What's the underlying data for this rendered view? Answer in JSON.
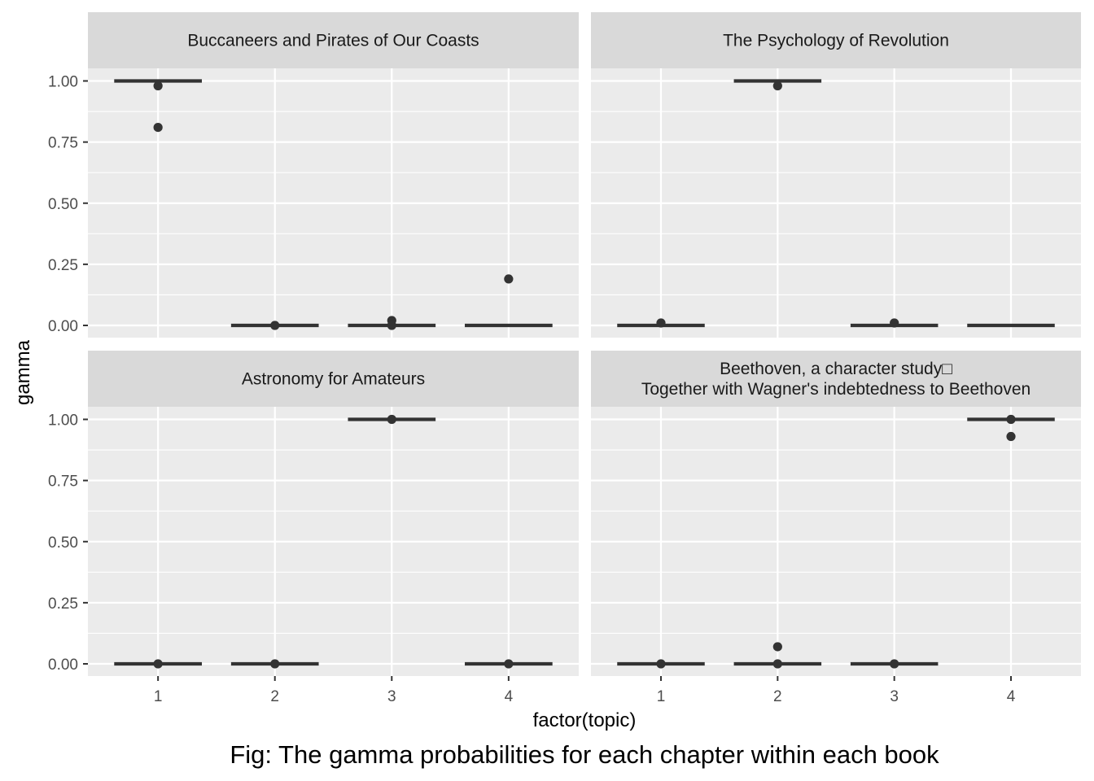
{
  "chart_data": {
    "type": "boxplot",
    "xlabel": "factor(topic)",
    "ylabel": "gamma",
    "caption": "Fig: The gamma probabilities for each chapter within each book",
    "categories": [
      "1",
      "2",
      "3",
      "4"
    ],
    "ylim": [
      0,
      1
    ],
    "y_ticks": [
      "0.00",
      "0.25",
      "0.50",
      "0.75",
      "1.00"
    ],
    "y_tick_values": [
      0,
      0.25,
      0.5,
      0.75,
      1.0
    ],
    "grid": true,
    "colors": {
      "panel_bg": "#ebebeb",
      "strip_bg": "#d9d9d9",
      "grid": "#ffffff",
      "mark": "#333333"
    },
    "facets": [
      {
        "title_lines": [
          "Buccaneers and Pirates of Our Coasts"
        ],
        "boxes": [
          {
            "topic": "1",
            "median": 1.0,
            "outliers": [
              0.98,
              0.81
            ]
          },
          {
            "topic": "2",
            "median": 0.0,
            "outliers": [
              0.0
            ]
          },
          {
            "topic": "3",
            "median": 0.0,
            "outliers": [
              0.02,
              0.0
            ]
          },
          {
            "topic": "4",
            "median": 0.0,
            "outliers": [
              0.19
            ]
          }
        ]
      },
      {
        "title_lines": [
          "The Psychology of Revolution"
        ],
        "boxes": [
          {
            "topic": "1",
            "median": 0.0,
            "outliers": [
              0.01
            ]
          },
          {
            "topic": "2",
            "median": 1.0,
            "outliers": [
              0.98
            ]
          },
          {
            "topic": "3",
            "median": 0.0,
            "outliers": [
              0.01
            ]
          },
          {
            "topic": "4",
            "median": 0.0,
            "outliers": []
          }
        ]
      },
      {
        "title_lines": [
          "Astronomy for Amateurs"
        ],
        "boxes": [
          {
            "topic": "1",
            "median": 0.0,
            "outliers": [
              0.0
            ]
          },
          {
            "topic": "2",
            "median": 0.0,
            "outliers": [
              0.0
            ]
          },
          {
            "topic": "3",
            "median": 1.0,
            "outliers": [
              1.0
            ]
          },
          {
            "topic": "4",
            "median": 0.0,
            "outliers": [
              0.0
            ]
          }
        ]
      },
      {
        "title_lines": [
          "Beethoven, a character study□",
          "Together with Wagner's indebtedness to Beethoven"
        ],
        "boxes": [
          {
            "topic": "1",
            "median": 0.0,
            "outliers": [
              0.0
            ]
          },
          {
            "topic": "2",
            "median": 0.0,
            "outliers": [
              0.07,
              0.0
            ]
          },
          {
            "topic": "3",
            "median": 0.0,
            "outliers": [
              0.0
            ]
          },
          {
            "topic": "4",
            "median": 1.0,
            "outliers": [
              1.0,
              0.93
            ]
          }
        ]
      }
    ]
  }
}
